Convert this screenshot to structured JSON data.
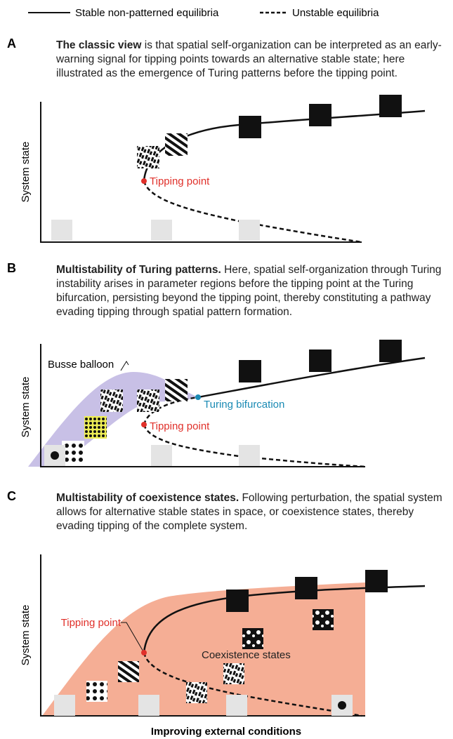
{
  "legend": {
    "stable": "Stable non-patterned equilibria",
    "unstable": "Unstable equilibria"
  },
  "panels": [
    {
      "letter": "A",
      "lead": "The classic view",
      "text": " is that spatial self-organization can be interpreted as an early-warning signal for tipping points towards an alternative stable state; here illustrated as the emergence of Turing patterns before the tipping point.",
      "y_label": "System state",
      "labels": [
        "Tipping point"
      ]
    },
    {
      "letter": "B",
      "lead": "Multistability of Turing patterns.",
      "text": " Here, spatial self-organization through Turing instability arises in parameter regions before the tipping point at the Turing bifurcation, persisting beyond the tipping point, thereby constituting a pathway evading tipping through spatial pattern formation.",
      "y_label": "System state",
      "labels": [
        "Busse balloon",
        "Turing bifurcation",
        "Tipping point"
      ]
    },
    {
      "letter": "C",
      "lead": "Multistability of coexistence states.",
      "text": " Following perturbation, the spatial system allows for alternative stable states in space, or coexistence states, thereby evading tipping of the complete system.",
      "y_label": "System state",
      "labels": [
        "Tipping point",
        "Coexistence states"
      ]
    }
  ],
  "x_label": "Improving external conditions"
}
